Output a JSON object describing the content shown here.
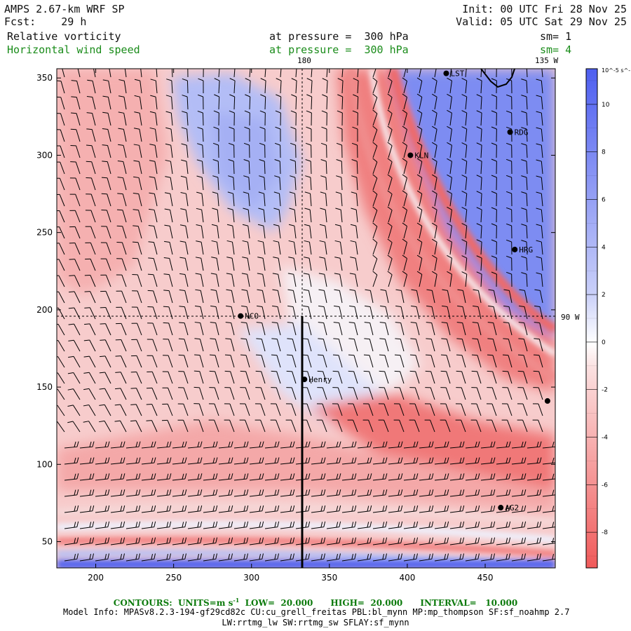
{
  "header": {
    "model": "AMPS 2.67-km WRF SP",
    "fcst": "Fcst:    29 h",
    "init": "Init: 00 UTC Fri 28 Nov 25",
    "valid": "Valid: 05 UTC Sat 29 Nov 25",
    "field1_name": "Relative vorticity",
    "field1_level": "at pressure =  300 hPa",
    "field1_sm": "sm= 1",
    "field2_name": "Horizontal wind speed",
    "field2_level": "at pressure =  300 hPa",
    "field2_sm": "sm= 4"
  },
  "map_labels": {
    "lon_180": "180",
    "lon_135w": "135 W",
    "lon_90w": "90 W"
  },
  "stations": [
    {
      "name": "LST",
      "x": 425,
      "y": 353
    },
    {
      "name": "RDG",
      "x": 466,
      "y": 315
    },
    {
      "name": "KLN",
      "x": 402,
      "y": 300
    },
    {
      "name": "HRG",
      "x": 469,
      "y": 239
    },
    {
      "name": "NCO",
      "x": 293,
      "y": 196
    },
    {
      "name": "Henry",
      "x": 334,
      "y": 155
    },
    {
      "name": "",
      "x": 490,
      "y": 141
    },
    {
      "name": "AG2",
      "x": 460,
      "y": 72
    }
  ],
  "colors": {
    "positive": "#4e5ff0",
    "negative": "#f05a5a",
    "neutral": "#ffffff"
  },
  "chart_data": {
    "type": "heatmap",
    "title": "Relative vorticity at pressure = 300 hPa",
    "xlabel": "",
    "ylabel": "",
    "xlim": [
      175,
      495
    ],
    "ylim": [
      33,
      356
    ],
    "xticks": [
      200,
      250,
      300,
      350,
      400,
      450
    ],
    "yticks": [
      50,
      100,
      150,
      200,
      250,
      300,
      350
    ],
    "colorbar": {
      "units": "10^-5 s^-1",
      "ticks": [
        10,
        8,
        6,
        4,
        2,
        0,
        -2,
        -4,
        -6,
        -8
      ],
      "range": [
        -9.5,
        11.5
      ]
    },
    "cross_section_x": 334,
    "cross_section_y_top": 196,
    "lon180_x": 334,
    "lat_line_y": 196
  },
  "footer": {
    "contours": "CONTOURS:  UNITS=m s",
    "contours_units_exp": "-1",
    "contours_rest": "  LOW=  20.000      HIGH=  20.000      INTERVAL=   10.000",
    "model_info": "Model Info: MPASv8.2.3-194-gf29cd82c CU:cu_grell_freitas PBL:bl_mynn MP:mp_thompson SF:sf_noahmp 2.7",
    "phys": "LW:rrtmg_lw SW:rrtmg_sw SFLAY:sf_mynn"
  }
}
